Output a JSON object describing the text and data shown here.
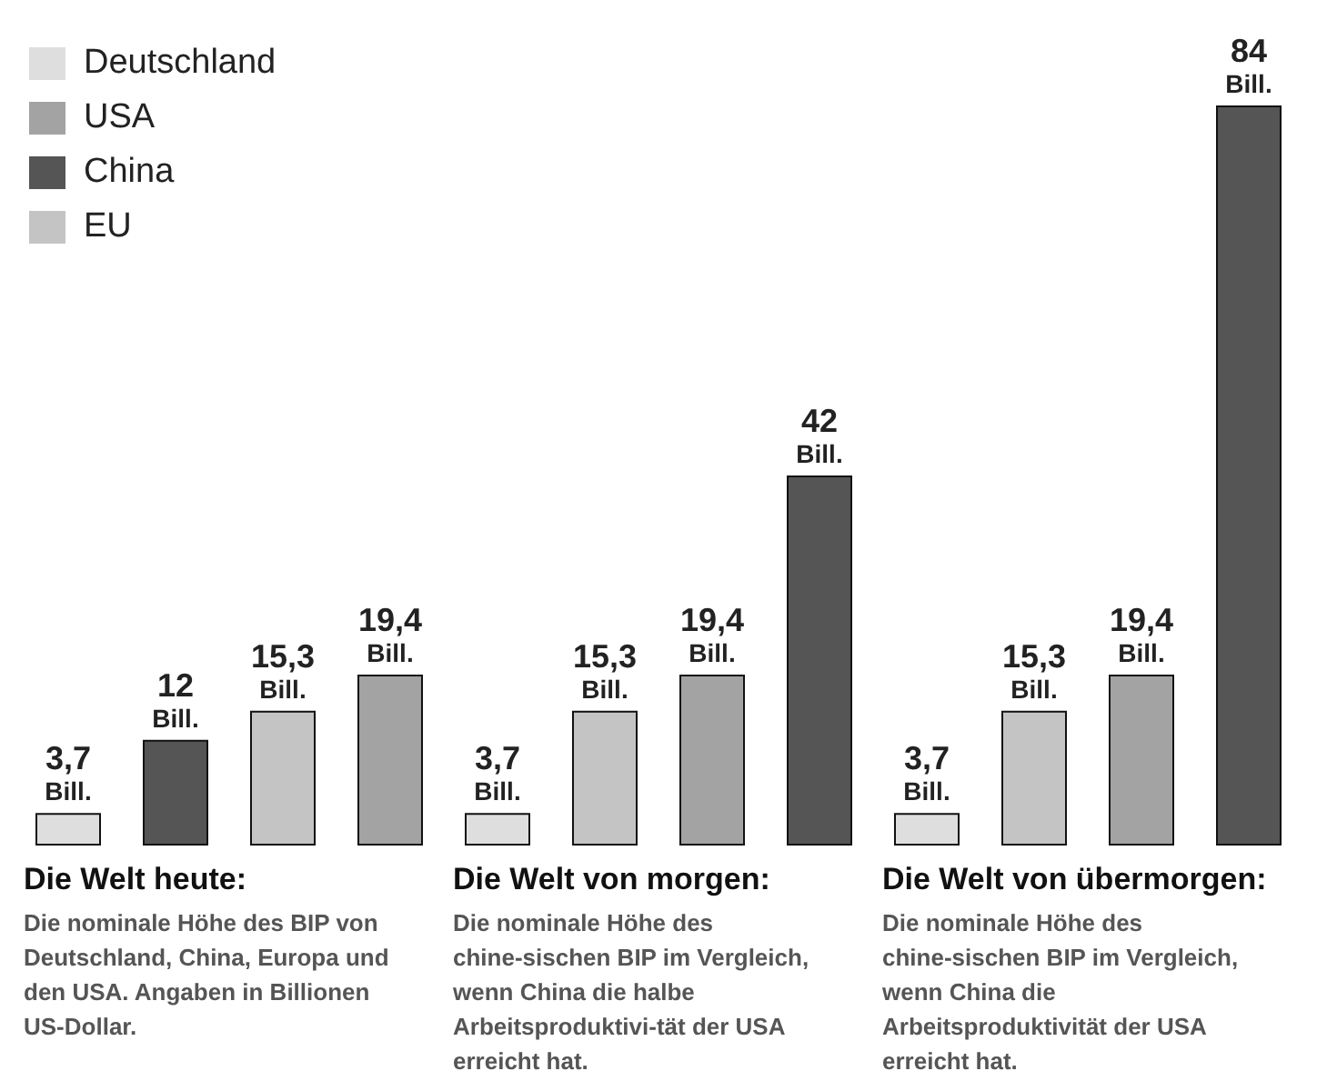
{
  "chart_data": [
    {
      "type": "other",
      "categories": [
        "Deutschland",
        "USA",
        "China",
        "EU"
      ],
      "colors": [
        "#dedede",
        "#a3a3a3",
        "#555555",
        "#c4c4c4"
      ]
    },
    {
      "type": "bar",
      "title": "Die Welt heute:",
      "subtitle": "Die nominale Höhe des BIP von Deutschland, China, Europa und den USA. Angaben in Billionen US-Dollar.",
      "categories": [
        null,
        null,
        null,
        null
      ],
      "values": [
        3.7,
        12,
        15.3,
        19.4
      ],
      "colors": [
        "#dedede",
        "#555555",
        "#c4c4c4",
        "#a3a3a3"
      ],
      "value_labels": [
        "3,7 Bill.",
        "12 Bill.",
        "15,3 Bill.",
        "19,4 Bill."
      ]
    },
    {
      "type": "bar",
      "title": "Die Welt von morgen:",
      "subtitle": "Die nominale Höhe des chine-sischen BIP im Vergleich, wenn China die halbe Arbeitsproduktivi-tät der USA erreicht hat.",
      "categories": [
        null,
        null,
        null,
        null
      ],
      "values": [
        3.7,
        15.3,
        19.4,
        42
      ],
      "colors": [
        "#dedede",
        "#c4c4c4",
        "#a3a3a3",
        "#555555"
      ],
      "value_labels": [
        "3,7 Bill.",
        "15,3 Bill.",
        "19,4 Bill.",
        "42 Bill."
      ]
    },
    {
      "type": "bar",
      "title": "Die Welt von übermorgen:",
      "subtitle": "Die nominale Höhe des chine-sischen BIP im Vergleich, wenn China die Arbeitsproduktivität der USA erreicht hat.",
      "categories": [
        null,
        null,
        null,
        null
      ],
      "values": [
        3.7,
        15.3,
        19.4,
        84
      ],
      "colors": [
        "#dedede",
        "#c4c4c4",
        "#a3a3a3",
        "#555555"
      ],
      "value_labels": [
        "3,7 Bill.",
        "15,3 Bill.",
        "19,4 Bill.",
        "84 Bill."
      ]
    }
  ]
}
